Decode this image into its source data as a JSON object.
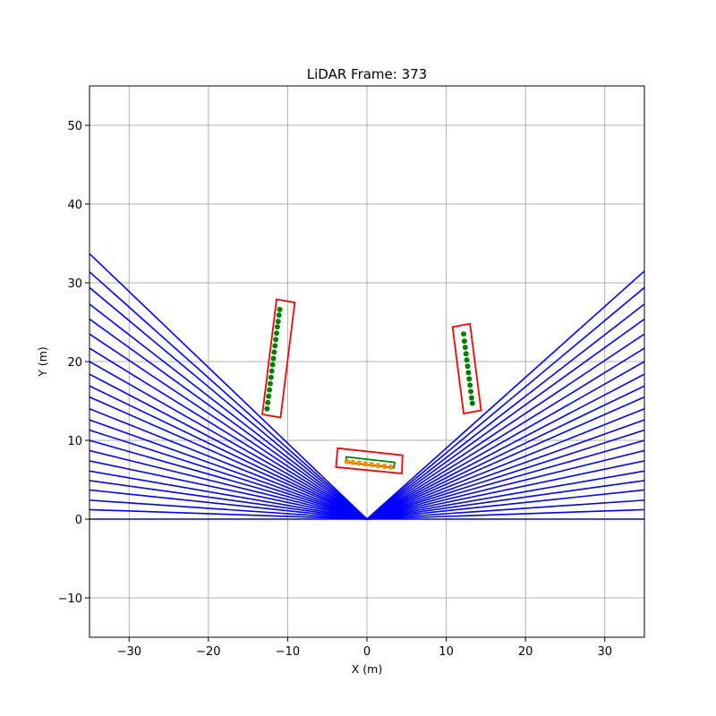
{
  "chart_data": {
    "type": "scatter",
    "title": "LiDAR Frame: 373",
    "xlabel": "X (m)",
    "ylabel": "Y (m)",
    "xlim": [
      -35,
      35
    ],
    "ylim": [
      -15,
      55
    ],
    "xticks": [
      -30,
      -20,
      -10,
      0,
      10,
      20,
      30
    ],
    "yticks": [
      -10,
      0,
      10,
      20,
      30,
      40,
      50
    ],
    "grid": true,
    "rays": {
      "color": "#0000ff",
      "origin": [
        0,
        0
      ],
      "left_endpoints": [
        [
          -35,
          33.7
        ],
        [
          -35,
          31.4
        ],
        [
          -35,
          29.4
        ],
        [
          -35,
          27.3
        ],
        [
          -35,
          25.4
        ],
        [
          -35,
          23.5
        ],
        [
          -35,
          21.7
        ],
        [
          -35,
          20.0
        ],
        [
          -35,
          18.4
        ],
        [
          -35,
          16.9
        ],
        [
          -35,
          15.5
        ],
        [
          -35,
          14.0
        ],
        [
          -35,
          12.6
        ],
        [
          -35,
          11.3
        ],
        [
          -35,
          10.0
        ],
        [
          -35,
          8.7
        ],
        [
          -35,
          7.4
        ],
        [
          -35,
          6.1
        ],
        [
          -35,
          4.9
        ],
        [
          -35,
          3.7
        ],
        [
          -35,
          2.4
        ],
        [
          -35,
          1.2
        ],
        [
          -35,
          0.0
        ]
      ],
      "right_endpoints": [
        [
          35,
          31.5
        ],
        [
          35,
          29.4
        ],
        [
          35,
          27.3
        ],
        [
          35,
          25.4
        ],
        [
          35,
          23.5
        ],
        [
          35,
          21.7
        ],
        [
          35,
          20.0
        ],
        [
          35,
          18.4
        ],
        [
          35,
          16.9
        ],
        [
          35,
          15.5
        ],
        [
          35,
          14.0
        ],
        [
          35,
          12.6
        ],
        [
          35,
          11.3
        ],
        [
          35,
          10.0
        ],
        [
          35,
          8.7
        ],
        [
          35,
          7.4
        ],
        [
          35,
          6.1
        ],
        [
          35,
          4.9
        ],
        [
          35,
          3.7
        ],
        [
          35,
          2.4
        ],
        [
          35,
          1.2
        ],
        [
          35,
          0.0
        ]
      ]
    },
    "red_boxes": [
      [
        [
          -11.4,
          27.9
        ],
        [
          -9.1,
          27.5
        ],
        [
          -10.9,
          12.9
        ],
        [
          -13.2,
          13.3
        ]
      ],
      [
        [
          10.8,
          24.4
        ],
        [
          13.0,
          24.8
        ],
        [
          14.4,
          13.8
        ],
        [
          12.2,
          13.4
        ]
      ],
      [
        [
          -3.7,
          9.0
        ],
        [
          4.5,
          8.1
        ],
        [
          4.4,
          5.8
        ],
        [
          -3.9,
          6.6
        ]
      ]
    ],
    "green_boxes": [
      [
        [
          -2.6,
          7.9
        ],
        [
          3.5,
          7.2
        ],
        [
          3.4,
          6.5
        ],
        [
          -2.7,
          7.2
        ]
      ]
    ],
    "green_points": [
      [
        -11.0,
        26.6
      ],
      [
        -11.1,
        25.9
      ],
      [
        -11.2,
        25.1
      ],
      [
        -11.3,
        24.4
      ],
      [
        -11.4,
        23.6
      ],
      [
        -11.5,
        22.8
      ],
      [
        -11.6,
        22.0
      ],
      [
        -11.7,
        21.2
      ],
      [
        -11.8,
        20.4
      ],
      [
        -11.9,
        19.6
      ],
      [
        -12.0,
        18.8
      ],
      [
        -12.1,
        18.0
      ],
      [
        -12.2,
        17.2
      ],
      [
        -12.3,
        16.4
      ],
      [
        -12.4,
        15.6
      ],
      [
        -12.5,
        14.8
      ],
      [
        -12.6,
        14.0
      ],
      [
        12.2,
        23.5
      ],
      [
        12.3,
        22.6
      ],
      [
        12.4,
        21.8
      ],
      [
        12.5,
        21.0
      ],
      [
        12.6,
        20.2
      ],
      [
        12.7,
        19.4
      ],
      [
        12.8,
        18.6
      ],
      [
        12.9,
        17.8
      ],
      [
        13.0,
        17.0
      ],
      [
        13.1,
        16.2
      ],
      [
        13.2,
        15.4
      ],
      [
        13.3,
        14.7
      ]
    ],
    "orange_points": [
      [
        -2.5,
        7.3
      ],
      [
        -1.8,
        7.2
      ],
      [
        -1.0,
        7.1
      ],
      [
        -0.2,
        7.0
      ],
      [
        0.6,
        6.9
      ],
      [
        1.4,
        6.8
      ],
      [
        2.2,
        6.7
      ],
      [
        3.0,
        6.6
      ]
    ]
  }
}
